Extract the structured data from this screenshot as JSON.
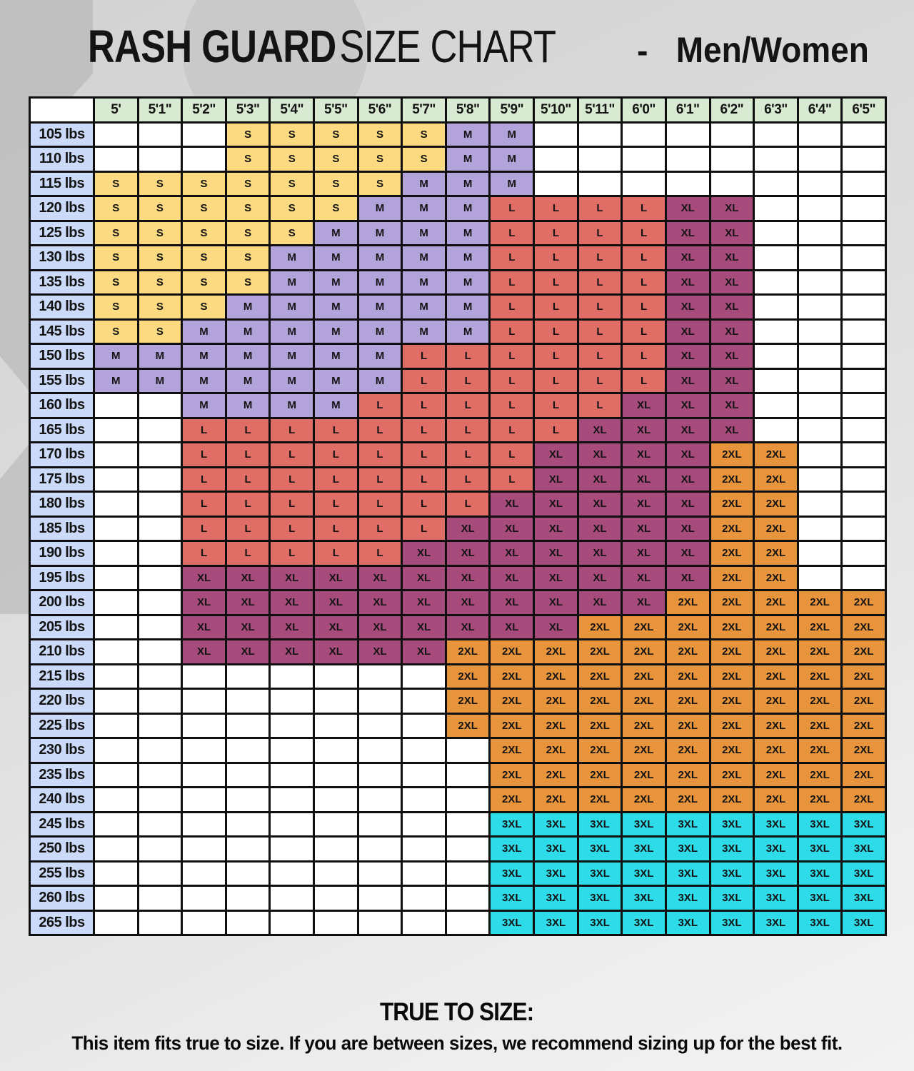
{
  "title": {
    "primary": "RASH GUARD",
    "secondary": "SIZE CHART",
    "separator": "-",
    "audience": "Men/Women"
  },
  "colors": {
    "S": "#fbda82",
    "M": "#b2a3da",
    "L": "#e06d66",
    "XL": "#a64b7b",
    "2XL": "#e8943c",
    "3XL": "#2edbe8",
    "header_bg": "#d9ead3",
    "weight_bg": "#cbdaf8",
    "empty_bg": "#ffffff",
    "grid_border": "#0f0f0f"
  },
  "chart_data": {
    "type": "table",
    "corner_label": "",
    "columns": [
      "5'",
      "5'1\"",
      "5'2\"",
      "5'3\"",
      "5'4\"",
      "5'5\"",
      "5'6\"",
      "5'7\"",
      "5'8\"",
      "5'9\"",
      "5'10\"",
      "5'11\"",
      "6'0\"",
      "6'1\"",
      "6'2\"",
      "6'3\"",
      "6'4\"",
      "6'5\""
    ],
    "rows": [
      {
        "weight": "105 lbs",
        "sizes": [
          "",
          "",
          "",
          "S",
          "S",
          "S",
          "S",
          "S",
          "M",
          "M",
          "",
          "",
          "",
          "",
          "",
          "",
          "",
          ""
        ]
      },
      {
        "weight": "110 lbs",
        "sizes": [
          "",
          "",
          "",
          "S",
          "S",
          "S",
          "S",
          "S",
          "M",
          "M",
          "",
          "",
          "",
          "",
          "",
          "",
          "",
          ""
        ]
      },
      {
        "weight": "115 lbs",
        "sizes": [
          "S",
          "S",
          "S",
          "S",
          "S",
          "S",
          "S",
          "M",
          "M",
          "M",
          "",
          "",
          "",
          "",
          "",
          "",
          "",
          ""
        ]
      },
      {
        "weight": "120 lbs",
        "sizes": [
          "S",
          "S",
          "S",
          "S",
          "S",
          "S",
          "M",
          "M",
          "M",
          "L",
          "L",
          "L",
          "L",
          "XL",
          "XL",
          "",
          "",
          ""
        ]
      },
      {
        "weight": "125 lbs",
        "sizes": [
          "S",
          "S",
          "S",
          "S",
          "S",
          "M",
          "M",
          "M",
          "M",
          "L",
          "L",
          "L",
          "L",
          "XL",
          "XL",
          "",
          "",
          ""
        ]
      },
      {
        "weight": "130 lbs",
        "sizes": [
          "S",
          "S",
          "S",
          "S",
          "M",
          "M",
          "M",
          "M",
          "M",
          "L",
          "L",
          "L",
          "L",
          "XL",
          "XL",
          "",
          "",
          ""
        ]
      },
      {
        "weight": "135 lbs",
        "sizes": [
          "S",
          "S",
          "S",
          "S",
          "M",
          "M",
          "M",
          "M",
          "M",
          "L",
          "L",
          "L",
          "L",
          "XL",
          "XL",
          "",
          "",
          ""
        ]
      },
      {
        "weight": "140 lbs",
        "sizes": [
          "S",
          "S",
          "S",
          "M",
          "M",
          "M",
          "M",
          "M",
          "M",
          "L",
          "L",
          "L",
          "L",
          "XL",
          "XL",
          "",
          "",
          ""
        ]
      },
      {
        "weight": "145 lbs",
        "sizes": [
          "S",
          "S",
          "M",
          "M",
          "M",
          "M",
          "M",
          "M",
          "M",
          "L",
          "L",
          "L",
          "L",
          "XL",
          "XL",
          "",
          "",
          ""
        ]
      },
      {
        "weight": "150 lbs",
        "sizes": [
          "M",
          "M",
          "M",
          "M",
          "M",
          "M",
          "M",
          "L",
          "L",
          "L",
          "L",
          "L",
          "L",
          "XL",
          "XL",
          "",
          "",
          ""
        ]
      },
      {
        "weight": "155 lbs",
        "sizes": [
          "M",
          "M",
          "M",
          "M",
          "M",
          "M",
          "M",
          "L",
          "L",
          "L",
          "L",
          "L",
          "L",
          "XL",
          "XL",
          "",
          "",
          ""
        ]
      },
      {
        "weight": "160 lbs",
        "sizes": [
          "",
          "",
          "M",
          "M",
          "M",
          "M",
          "L",
          "L",
          "L",
          "L",
          "L",
          "L",
          "XL",
          "XL",
          "XL",
          "",
          "",
          ""
        ]
      },
      {
        "weight": "165 lbs",
        "sizes": [
          "",
          "",
          "L",
          "L",
          "L",
          "L",
          "L",
          "L",
          "L",
          "L",
          "L",
          "XL",
          "XL",
          "XL",
          "XL",
          "",
          "",
          ""
        ]
      },
      {
        "weight": "170 lbs",
        "sizes": [
          "",
          "",
          "L",
          "L",
          "L",
          "L",
          "L",
          "L",
          "L",
          "L",
          "XL",
          "XL",
          "XL",
          "XL",
          "2XL",
          "2XL",
          "",
          ""
        ]
      },
      {
        "weight": "175 lbs",
        "sizes": [
          "",
          "",
          "L",
          "L",
          "L",
          "L",
          "L",
          "L",
          "L",
          "L",
          "XL",
          "XL",
          "XL",
          "XL",
          "2XL",
          "2XL",
          "",
          ""
        ]
      },
      {
        "weight": "180 lbs",
        "sizes": [
          "",
          "",
          "L",
          "L",
          "L",
          "L",
          "L",
          "L",
          "L",
          "XL",
          "XL",
          "XL",
          "XL",
          "XL",
          "2XL",
          "2XL",
          "",
          ""
        ]
      },
      {
        "weight": "185 lbs",
        "sizes": [
          "",
          "",
          "L",
          "L",
          "L",
          "L",
          "L",
          "L",
          "XL",
          "XL",
          "XL",
          "XL",
          "XL",
          "XL",
          "2XL",
          "2XL",
          "",
          ""
        ]
      },
      {
        "weight": "190 lbs",
        "sizes": [
          "",
          "",
          "L",
          "L",
          "L",
          "L",
          "L",
          "XL",
          "XL",
          "XL",
          "XL",
          "XL",
          "XL",
          "XL",
          "2XL",
          "2XL",
          "",
          ""
        ]
      },
      {
        "weight": "195 lbs",
        "sizes": [
          "",
          "",
          "XL",
          "XL",
          "XL",
          "XL",
          "XL",
          "XL",
          "XL",
          "XL",
          "XL",
          "XL",
          "XL",
          "XL",
          "2XL",
          "2XL",
          "",
          ""
        ]
      },
      {
        "weight": "200 lbs",
        "sizes": [
          "",
          "",
          "XL",
          "XL",
          "XL",
          "XL",
          "XL",
          "XL",
          "XL",
          "XL",
          "XL",
          "XL",
          "XL",
          "2XL",
          "2XL",
          "2XL",
          "2XL",
          "2XL"
        ]
      },
      {
        "weight": "205 lbs",
        "sizes": [
          "",
          "",
          "XL",
          "XL",
          "XL",
          "XL",
          "XL",
          "XL",
          "XL",
          "XL",
          "XL",
          "2XL",
          "2XL",
          "2XL",
          "2XL",
          "2XL",
          "2XL",
          "2XL"
        ]
      },
      {
        "weight": "210 lbs",
        "sizes": [
          "",
          "",
          "XL",
          "XL",
          "XL",
          "XL",
          "XL",
          "XL",
          "2XL",
          "2XL",
          "2XL",
          "2XL",
          "2XL",
          "2XL",
          "2XL",
          "2XL",
          "2XL",
          "2XL"
        ]
      },
      {
        "weight": "215 lbs",
        "sizes": [
          "",
          "",
          "",
          "",
          "",
          "",
          "",
          "",
          "2XL",
          "2XL",
          "2XL",
          "2XL",
          "2XL",
          "2XL",
          "2XL",
          "2XL",
          "2XL",
          "2XL"
        ]
      },
      {
        "weight": "220 lbs",
        "sizes": [
          "",
          "",
          "",
          "",
          "",
          "",
          "",
          "",
          "2XL",
          "2XL",
          "2XL",
          "2XL",
          "2XL",
          "2XL",
          "2XL",
          "2XL",
          "2XL",
          "2XL"
        ]
      },
      {
        "weight": "225 lbs",
        "sizes": [
          "",
          "",
          "",
          "",
          "",
          "",
          "",
          "",
          "2XL",
          "2XL",
          "2XL",
          "2XL",
          "2XL",
          "2XL",
          "2XL",
          "2XL",
          "2XL",
          "2XL"
        ]
      },
      {
        "weight": "230 lbs",
        "sizes": [
          "",
          "",
          "",
          "",
          "",
          "",
          "",
          "",
          "",
          "2XL",
          "2XL",
          "2XL",
          "2XL",
          "2XL",
          "2XL",
          "2XL",
          "2XL",
          "2XL"
        ]
      },
      {
        "weight": "235 lbs",
        "sizes": [
          "",
          "",
          "",
          "",
          "",
          "",
          "",
          "",
          "",
          "2XL",
          "2XL",
          "2XL",
          "2XL",
          "2XL",
          "2XL",
          "2XL",
          "2XL",
          "2XL"
        ]
      },
      {
        "weight": "240 lbs",
        "sizes": [
          "",
          "",
          "",
          "",
          "",
          "",
          "",
          "",
          "",
          "2XL",
          "2XL",
          "2XL",
          "2XL",
          "2XL",
          "2XL",
          "2XL",
          "2XL",
          "2XL"
        ]
      },
      {
        "weight": "245 lbs",
        "sizes": [
          "",
          "",
          "",
          "",
          "",
          "",
          "",
          "",
          "",
          "3XL",
          "3XL",
          "3XL",
          "3XL",
          "3XL",
          "3XL",
          "3XL",
          "3XL",
          "3XL"
        ]
      },
      {
        "weight": "250 lbs",
        "sizes": [
          "",
          "",
          "",
          "",
          "",
          "",
          "",
          "",
          "",
          "3XL",
          "3XL",
          "3XL",
          "3XL",
          "3XL",
          "3XL",
          "3XL",
          "3XL",
          "3XL"
        ]
      },
      {
        "weight": "255 lbs",
        "sizes": [
          "",
          "",
          "",
          "",
          "",
          "",
          "",
          "",
          "",
          "3XL",
          "3XL",
          "3XL",
          "3XL",
          "3XL",
          "3XL",
          "3XL",
          "3XL",
          "3XL"
        ]
      },
      {
        "weight": "260 lbs",
        "sizes": [
          "",
          "",
          "",
          "",
          "",
          "",
          "",
          "",
          "",
          "3XL",
          "3XL",
          "3XL",
          "3XL",
          "3XL",
          "3XL",
          "3XL",
          "3XL",
          "3XL"
        ]
      },
      {
        "weight": "265 lbs",
        "sizes": [
          "",
          "",
          "",
          "",
          "",
          "",
          "",
          "",
          "",
          "3XL",
          "3XL",
          "3XL",
          "3XL",
          "3XL",
          "3XL",
          "3XL",
          "3XL",
          "3XL"
        ]
      }
    ]
  },
  "footer": {
    "heading": "TRUE TO SIZE:",
    "note": "This item fits true to size. If you are between sizes, we recommend sizing up for the best fit."
  }
}
